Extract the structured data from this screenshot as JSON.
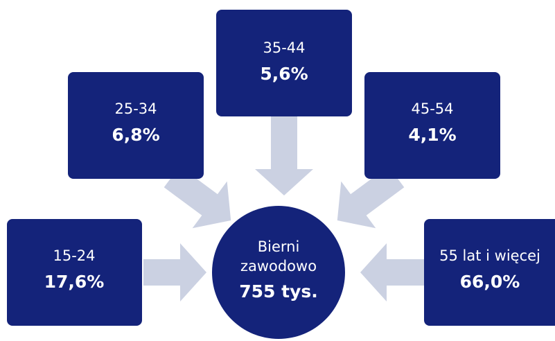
{
  "center": {
    "label_lines": [
      "Bierni",
      "zawodowo"
    ],
    "value": "755 tys."
  },
  "nodes": [
    {
      "label": "15-24",
      "value": "17,6%"
    },
    {
      "label": "25-34",
      "value": "6,8%"
    },
    {
      "label": "35-44",
      "value": "5,6%"
    },
    {
      "label": "45-54",
      "value": "4,1%"
    },
    {
      "label": "55 lat i więcej",
      "value": "66,0%"
    }
  ]
}
